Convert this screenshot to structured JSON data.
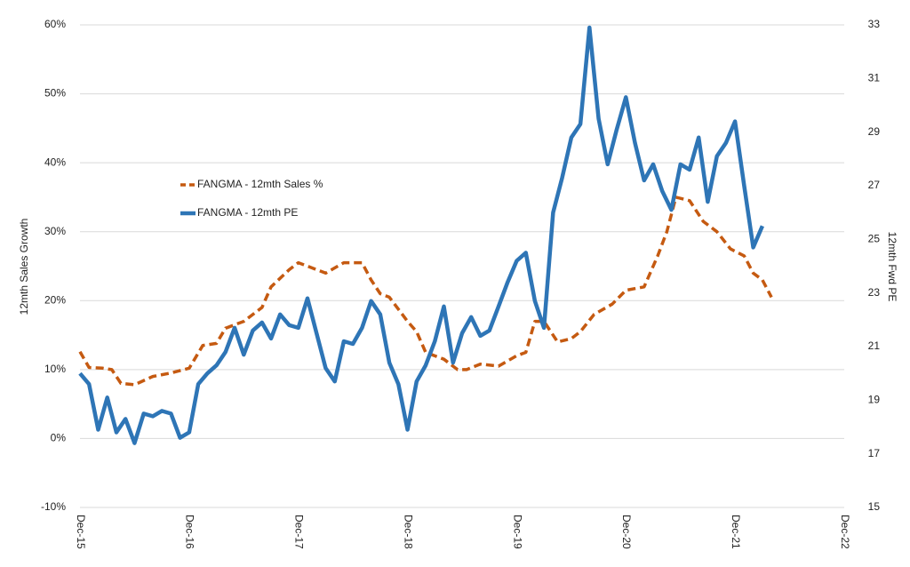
{
  "chart_data": {
    "type": "line",
    "y_label": "12mth Sales Growth",
    "y2_label": "12mth Fwd PE",
    "xlim": [
      0,
      84
    ],
    "xticks": [
      {
        "value": 0,
        "label": "Dec-15"
      },
      {
        "value": 12,
        "label": "Dec-16"
      },
      {
        "value": 24,
        "label": "Dec-17"
      },
      {
        "value": 36,
        "label": "Dec-18"
      },
      {
        "value": 48,
        "label": "Dec-19"
      },
      {
        "value": 60,
        "label": "Dec-20"
      },
      {
        "value": 72,
        "label": "Dec-21"
      },
      {
        "value": 84,
        "label": "Dec-22"
      }
    ],
    "ylim": [
      -10,
      60
    ],
    "yticks": [
      {
        "value": -10,
        "label": "-10%"
      },
      {
        "value": 0,
        "label": "0%"
      },
      {
        "value": 10,
        "label": "10%"
      },
      {
        "value": 20,
        "label": "20%"
      },
      {
        "value": 30,
        "label": "30%"
      },
      {
        "value": 40,
        "label": "40%"
      },
      {
        "value": 50,
        "label": "50%"
      },
      {
        "value": 60,
        "label": "60%"
      }
    ],
    "y2lim": [
      15,
      33
    ],
    "y2ticks": [
      15,
      17,
      19,
      21,
      23,
      25,
      27,
      29,
      31,
      33
    ],
    "grid": true,
    "series": [
      {
        "name": "FANGMA - 12mth Sales %",
        "color": "#c55a11",
        "dashed": true,
        "x": [
          0,
          1,
          2.5,
          3.5,
          4.5,
          6,
          8,
          10,
          12,
          13.5,
          15,
          16,
          18,
          20,
          21,
          23,
          24,
          26,
          27,
          29,
          31,
          32,
          33,
          34,
          36,
          37,
          38,
          40,
          41.5,
          42.5,
          44,
          46,
          48,
          49,
          50,
          51,
          52.5,
          54,
          55,
          56.5,
          58.5,
          60,
          62,
          63.5,
          64.5,
          65.5,
          67,
          68.5,
          70,
          71.5,
          73,
          74,
          75,
          76
        ],
        "values": [
          12.6,
          10.3,
          10.2,
          10,
          8,
          7.8,
          9,
          9.5,
          10.2,
          13.5,
          13.8,
          16,
          17,
          19,
          22,
          24.5,
          25.5,
          24.5,
          24,
          25.5,
          25.5,
          23,
          21,
          20.5,
          17,
          15.5,
          12.5,
          11.5,
          10,
          10,
          10.8,
          10.5,
          12,
          12.5,
          17,
          17,
          14,
          14.5,
          15.5,
          18,
          19.5,
          21.5,
          22,
          26.5,
          30,
          35,
          34.5,
          31.5,
          30,
          27.5,
          26.5,
          24,
          23,
          20.5
        ]
      },
      {
        "name": "FANGMA - 12mth PE",
        "color": "#2e75b6",
        "axis": "y2",
        "x": [
          0,
          1,
          2,
          3,
          4,
          5,
          6,
          7,
          8,
          9,
          10,
          11,
          12,
          13,
          14,
          15,
          16,
          17,
          18,
          19,
          20,
          21,
          22,
          23,
          24,
          25,
          26,
          27,
          28,
          29,
          30,
          31,
          32,
          33,
          34,
          35,
          36,
          37,
          38,
          39,
          40,
          41,
          42,
          43,
          44,
          45,
          46,
          47,
          48,
          49,
          50,
          51,
          52,
          53,
          54,
          55,
          56,
          57,
          58,
          59,
          60,
          61,
          62,
          63,
          64,
          65,
          66,
          67,
          68,
          69,
          70,
          71,
          72,
          73,
          74,
          75
        ],
        "values": [
          20.0,
          19.6,
          17.9,
          19.1,
          17.8,
          18.3,
          17.4,
          18.5,
          18.4,
          18.6,
          18.5,
          17.6,
          17.8,
          19.6,
          20.0,
          20.3,
          20.8,
          21.7,
          20.7,
          21.6,
          21.9,
          21.3,
          22.2,
          21.8,
          21.7,
          22.8,
          21.5,
          20.2,
          19.7,
          21.2,
          21.1,
          21.7,
          22.7,
          22.2,
          20.4,
          19.6,
          17.9,
          19.7,
          20.3,
          21.2,
          22.5,
          20.4,
          21.5,
          22.1,
          21.4,
          21.6,
          22.5,
          23.4,
          24.2,
          24.5,
          22.7,
          21.7,
          26.0,
          27.3,
          28.8,
          29.3,
          32.9,
          29.5,
          27.8,
          29.1,
          30.3,
          28.6,
          27.2,
          27.8,
          26.8,
          26.1,
          27.8,
          27.6,
          28.8,
          26.4,
          28.1,
          28.6,
          29.4,
          27.0,
          24.7,
          25.5
        ]
      }
    ]
  }
}
